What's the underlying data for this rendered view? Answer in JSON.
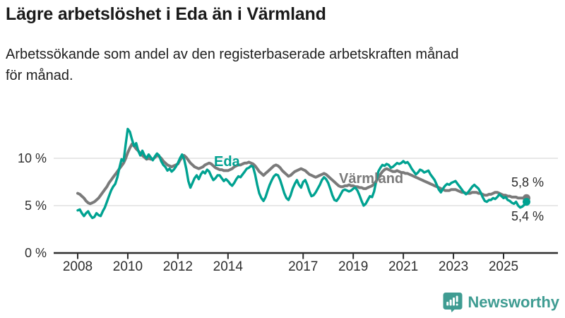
{
  "header": {
    "title": "Lägre arbetslöshet i Eda än i Värmland",
    "subtitle_line1": "Arbetssökande som andel av den registerbaserade arbetskraften månad",
    "subtitle_line2": "för månad."
  },
  "footer": {
    "brand": "Newsworthy",
    "logo_icon": "speech-bubble-bar-chart-exclamation"
  },
  "colors": {
    "eda_teal": "#00a291",
    "varmland_gray": "#7a7a7a",
    "axis": "#2e2e2e",
    "grid": "#e0e0e0",
    "brand_teal": "#3f9c92"
  },
  "chart_data": {
    "type": "line",
    "title": "Lägre arbetslöshet i Eda än i Värmland",
    "subtitle": "Arbetssökande som andel av den registerbaserade arbetskraften månad för månad.",
    "grid": "horizontal",
    "legend": "inline-labels",
    "unit": "%",
    "x_start": 2008.0,
    "x_step_years": 0.08333,
    "x_axis": {
      "range": [
        2007.45,
        2027.2
      ],
      "ticks": [
        {
          "year": 2008,
          "label": "2008"
        },
        {
          "year": 2010,
          "label": "2010"
        },
        {
          "year": 2012,
          "label": "2012"
        },
        {
          "year": 2014,
          "label": "2014"
        },
        {
          "year": 2017,
          "label": "2017"
        },
        {
          "year": 2019,
          "label": "2019"
        },
        {
          "year": 2021,
          "label": "2021"
        },
        {
          "year": 2023,
          "label": "2023"
        },
        {
          "year": 2025,
          "label": "2025"
        }
      ]
    },
    "y_axis": {
      "range": [
        0,
        14.4
      ],
      "ticks": [
        {
          "value": 0,
          "label": "0 %"
        },
        {
          "value": 5,
          "label": "5 %"
        },
        {
          "value": 10,
          "label": "10 %"
        }
      ]
    },
    "series": [
      {
        "name": "Eda",
        "color": "#00a291",
        "end_value": 5.4,
        "end_label": "5,4 %",
        "values": [
          4.5,
          4.6,
          4.2,
          3.9,
          4.2,
          4.4,
          4.0,
          3.7,
          3.8,
          4.2,
          4.0,
          3.9,
          4.4,
          4.8,
          5.4,
          6.0,
          6.6,
          7.0,
          7.3,
          8.0,
          9.0,
          9.9,
          9.7,
          11.5,
          13.1,
          12.8,
          12.0,
          11.3,
          11.6,
          10.8,
          10.3,
          10.8,
          10.3,
          10.0,
          10.4,
          10.1,
          9.8,
          10.2,
          10.5,
          10.3,
          9.7,
          9.3,
          9.1,
          8.7,
          8.9,
          8.6,
          8.8,
          9.1,
          9.5,
          10.0,
          10.4,
          9.9,
          8.9,
          7.6,
          6.9,
          7.4,
          7.9,
          8.2,
          7.8,
          8.3,
          8.6,
          8.4,
          8.8,
          8.6,
          8.1,
          7.7,
          7.9,
          8.2,
          8.2,
          7.9,
          7.6,
          7.8,
          7.6,
          7.3,
          7.1,
          7.4,
          7.8,
          8.1,
          8.0,
          8.3,
          8.6,
          8.9,
          9.0,
          9.2,
          9.1,
          8.3,
          7.2,
          6.3,
          5.8,
          5.5,
          5.9,
          6.6,
          7.2,
          7.7,
          8.1,
          8.3,
          8.2,
          7.7,
          7.0,
          6.3,
          5.8,
          5.6,
          6.1,
          6.8,
          7.3,
          7.7,
          7.2,
          6.9,
          7.5,
          7.7,
          7.2,
          6.5,
          6.0,
          6.1,
          6.4,
          6.8,
          7.2,
          7.7,
          8.0,
          7.8,
          7.4,
          6.8,
          6.1,
          5.6,
          5.5,
          5.8,
          6.2,
          6.6,
          6.7,
          6.6,
          6.5,
          6.6,
          6.8,
          6.9,
          6.6,
          6.1,
          5.5,
          5.0,
          5.2,
          5.6,
          6.0,
          5.9,
          6.5,
          7.6,
          8.6,
          9.0,
          9.3,
          9.2,
          9.4,
          9.3,
          9.0,
          9.1,
          9.3,
          9.5,
          9.4,
          9.5,
          9.7,
          9.5,
          9.6,
          9.3,
          8.9,
          8.6,
          8.3,
          8.5,
          8.8,
          8.7,
          8.5,
          8.6,
          8.7,
          8.3,
          8.0,
          7.7,
          7.2,
          6.7,
          6.4,
          6.8,
          7.1,
          7.3,
          7.2,
          7.4,
          7.5,
          7.6,
          7.3,
          7.0,
          6.7,
          6.4,
          6.2,
          6.4,
          6.7,
          7.0,
          7.2,
          7.0,
          6.8,
          6.4,
          5.9,
          5.5,
          5.4,
          5.6,
          5.6,
          5.8,
          5.7,
          5.9,
          6.2,
          6.0,
          5.8,
          5.9,
          5.6,
          5.5,
          5.3,
          5.2,
          5.4,
          5.0,
          4.8,
          4.9,
          5.1,
          5.4
        ]
      },
      {
        "name": "Värmland",
        "color": "#7a7a7a",
        "end_value": 5.8,
        "end_label": "5,8 %",
        "values": [
          6.3,
          6.2,
          6.0,
          5.8,
          5.5,
          5.3,
          5.2,
          5.3,
          5.4,
          5.6,
          5.8,
          6.1,
          6.4,
          6.7,
          7.0,
          7.4,
          7.7,
          8.0,
          8.3,
          8.6,
          8.9,
          9.2,
          9.5,
          10.0,
          10.6,
          11.1,
          11.5,
          11.3,
          11.0,
          10.8,
          10.5,
          10.3,
          10.1,
          9.9,
          10.0,
          9.9,
          9.9,
          10.1,
          10.3,
          10.2,
          10.0,
          9.7,
          9.5,
          9.3,
          9.2,
          9.1,
          9.2,
          9.3,
          9.4,
          9.8,
          10.1,
          10.3,
          10.1,
          9.8,
          9.5,
          9.3,
          9.1,
          9.0,
          8.9,
          9.0,
          9.1,
          9.3,
          9.4,
          9.5,
          9.4,
          9.2,
          9.0,
          8.9,
          8.8,
          8.8,
          8.7,
          8.7,
          8.7,
          8.8,
          8.9,
          9.1,
          9.2,
          9.3,
          9.3,
          9.4,
          9.5,
          9.5,
          9.6,
          9.5,
          9.4,
          9.2,
          8.9,
          8.6,
          8.4,
          8.2,
          8.4,
          8.6,
          8.8,
          9.0,
          9.2,
          9.3,
          9.2,
          9.0,
          8.7,
          8.5,
          8.3,
          8.1,
          8.2,
          8.4,
          8.6,
          8.7,
          8.8,
          8.9,
          8.8,
          8.7,
          8.5,
          8.3,
          8.2,
          8.1,
          8.0,
          8.1,
          8.2,
          8.3,
          8.4,
          8.3,
          8.1,
          7.9,
          7.7,
          7.5,
          7.3,
          7.1,
          7.0,
          7.0,
          7.1,
          7.1,
          7.2,
          7.1,
          7.1,
          7.0,
          7.0,
          6.9,
          6.9,
          6.8,
          6.8,
          6.9,
          7.0,
          7.1,
          7.3,
          7.6,
          7.9,
          8.3,
          8.6,
          8.8,
          8.9,
          8.8,
          8.7,
          8.6,
          8.6,
          8.7,
          8.6,
          8.5,
          8.5,
          8.4,
          8.4,
          8.3,
          8.2,
          8.1,
          8.0,
          7.9,
          7.8,
          7.7,
          7.6,
          7.5,
          7.4,
          7.3,
          7.2,
          7.1,
          7.0,
          6.9,
          6.8,
          6.7,
          6.6,
          6.6,
          6.6,
          6.7,
          6.7,
          6.7,
          6.6,
          6.5,
          6.4,
          6.4,
          6.3,
          6.3,
          6.3,
          6.4,
          6.4,
          6.4,
          6.3,
          6.3,
          6.2,
          6.1,
          6.1,
          6.2,
          6.2,
          6.3,
          6.4,
          6.4,
          6.3,
          6.2,
          6.1,
          6.1,
          6.0,
          6.0,
          5.9,
          5.9,
          5.9,
          5.8,
          5.8,
          5.8,
          5.8,
          5.8
        ]
      }
    ]
  }
}
